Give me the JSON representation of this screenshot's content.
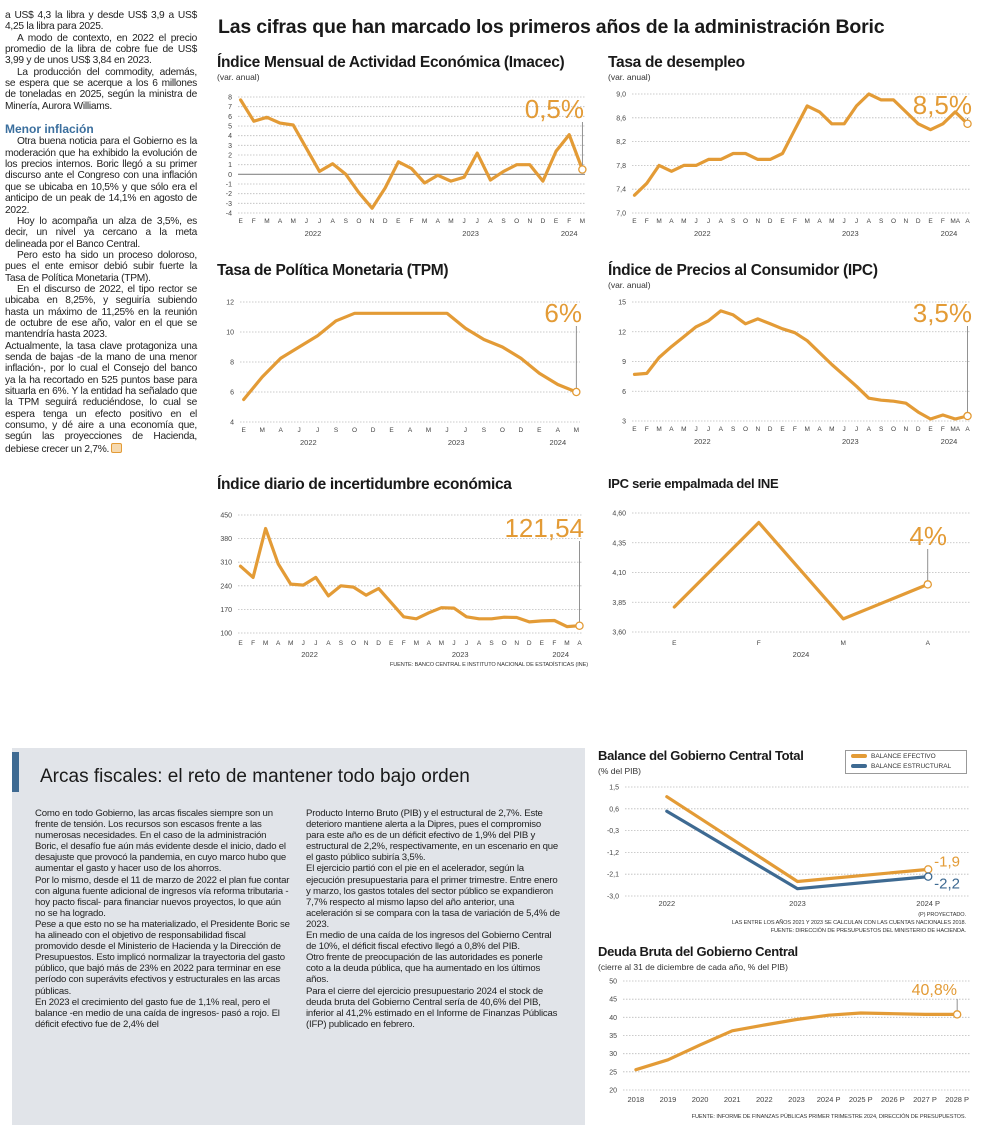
{
  "headline": "Las cifras que han marcado los primeros años de la administración Boric",
  "left_article": {
    "paragraphs_top": [
      "a US$ 4,3 la libra y desde US$ 3,9 a US$ 4,25 la libra para 2025.",
      "A modo de contexto, en 2022 el precio promedio de la libra de cobre fue de US$ 3,99 y de unos US$ 3,84 en 2023.",
      "La producción del commodity, además, se espera que se acerque a los 6 millones de toneladas en 2025, según la ministra de Minería, Aurora Williams."
    ],
    "subheading": "Menor inflación",
    "paragraphs": [
      "Otra buena noticia para el Gobierno es la moderación que ha exhibido la evolución de los precios internos. Boric llegó a su primer discurso ante el Congreso con una inflación que se ubicaba en 10,5% y que sólo era el anticipo de un peak de 14,1% en agosto de 2022.",
      "Hoy lo acompaña un alza de 3,5%, es decir, un nivel ya cercano a la meta delineada por el Banco Central.",
      "Pero esto ha sido un proceso doloroso, pues el ente emisor debió subir fuerte la Tasa de Política Monetaria (TPM).",
      "En el discurso de 2022, el tipo rector se ubicaba en 8,25%, y seguiría subiendo hasta un máximo de 11,25% en la reunión de octubre de ese año, valor en el que se mantendría hasta 2023.",
      "Actualmente, la tasa clave protagoniza una senda de bajas -de la mano de una menor inflación-, por lo cual el Consejo del banco ya la ha recortado en 525 puntos base para situarla en 6%. Y la entidad ha señalado que la TPM seguirá reduciéndose, lo cual se espera tenga un efecto positivo en el consumo, y dé aire a una economía que, según las proyecciones de Hacienda, debiese crecer un 2,7%."
    ]
  },
  "fiscal_box": {
    "title": "Arcas fiscales: el reto de mantener todo bajo orden",
    "accent_color": "#3e6a92",
    "col1": [
      "Como en todo Gobierno, las arcas fiscales siempre son un frente de tensión. Los recursos son escasos frente a las numerosas necesidades. En el caso de la administración Boric, el desafío fue aún más evidente desde el inicio, dado el desajuste que provocó la pandemia, en cuyo marco hubo que aumentar el gasto y hacer uso de los ahorros.",
      "Por lo mismo, desde el 11 de marzo de 2022 el plan fue contar con alguna fuente adicional de ingresos vía reforma tributaria -hoy pacto fiscal- para financiar nuevos proyectos, lo que aún no se ha logrado.",
      "Pese a que esto no se ha materializado, el Presidente Boric se ha alineado con el objetivo de responsabilidad fiscal promovido desde el Ministerio de Hacienda y la Dirección de Presupuestos. Esto implicó normalizar la trayectoria del gasto público, que bajó más de 23% en 2022 para terminar en ese período con superávits efectivos y estructurales en las arcas públicas.",
      "En 2023 el crecimiento del gasto fue de 1,1% real, pero el balance -en medio de una caída de ingresos- pasó a rojo. El déficit efectivo fue de 2,4% del"
    ],
    "col2": [
      "Producto Interno Bruto (PIB) y el estructural de 2,7%. Este deterioro mantiene alerta a la Dipres, pues el compromiso para este año es de un déficit efectivo de 1,9% del PIB y estructural de 2,2%, respectivamente, en un escenario en que el gasto público subiría 3,5%.",
      "El ejercicio partió con el pie en el acelerador, según la ejecución presupuestaria para el primer trimestre. Entre enero y marzo, los gastos totales del sector público se expandieron 7,7% respecto al mismo lapso del año anterior, una aceleración si se compara con la tasa de variación de 5,4% de 2023.",
      "En medio de una caída de los ingresos del Gobierno Central de 10%, el déficit fiscal efectivo llegó a 0,8% del PIB.",
      "Otro frente de preocupación de las autoridades es ponerle coto a la deuda pública, que ha aumentado en los últimos años.",
      "Para el cierre del ejercicio presupuestario 2024 el stock de deuda bruta del Gobierno Central sería de 40,6% del PIB, inferior al 41,2% estimado en el Informe de Finanzas Públicas (IFP) publicado en febrero."
    ]
  },
  "chart_data": [
    {
      "type": "line",
      "title": "Índice Mensual de Actividad Económica (Imacec)",
      "subtitle": "(var. anual)",
      "categories": [
        "E",
        "F",
        "M",
        "A",
        "M",
        "J",
        "J",
        "A",
        "S",
        "O",
        "N",
        "D",
        "E",
        "F",
        "M",
        "A",
        "M",
        "J",
        "J",
        "A",
        "S",
        "O",
        "N",
        "D",
        "E",
        "F",
        "M"
      ],
      "years": [
        {
          "label": "2022",
          "count": 12
        },
        {
          "label": "2023",
          "count": 12
        },
        {
          "label": "2024",
          "count": 3
        }
      ],
      "ytick_labels": [
        "8",
        "7",
        "6",
        "5",
        "4",
        "3",
        "2",
        "1",
        "0",
        "-1",
        "-2",
        "-3",
        "-4"
      ],
      "ylim": [
        -4,
        8
      ],
      "grid": true,
      "zero_line": true,
      "series": [
        {
          "values": [
            7.7,
            5.5,
            5.9,
            5.3,
            5.1,
            2.7,
            0.3,
            1.1,
            0.0,
            -1.9,
            -3.5,
            -1.4,
            1.3,
            0.6,
            -0.9,
            -0.1,
            -0.7,
            -0.3,
            2.2,
            -0.6,
            0.3,
            1.0,
            1.0,
            -0.7,
            2.4,
            4.1,
            0.5
          ],
          "color": "#e39b36"
        }
      ],
      "callout": "0,5%"
    },
    {
      "type": "line",
      "title": "Tasa de desempleo",
      "subtitle": "(var. anual)",
      "categories": [
        "E",
        "F",
        "M",
        "A",
        "M",
        "J",
        "J",
        "A",
        "S",
        "O",
        "N",
        "D",
        "E",
        "F",
        "M",
        "A",
        "M",
        "J",
        "J",
        "A",
        "S",
        "O",
        "N",
        "D",
        "E",
        "F",
        "MA",
        "A"
      ],
      "years": [
        {
          "label": "2022",
          "count": 12
        },
        {
          "label": "2023",
          "count": 12
        },
        {
          "label": "2024",
          "count": 4
        }
      ],
      "ytick_labels": [
        "9,0",
        "8,6",
        "8,2",
        "7,8",
        "7,4",
        "7,0"
      ],
      "ylim": [
        7.0,
        9.0
      ],
      "grid": true,
      "series": [
        {
          "values": [
            7.3,
            7.5,
            7.8,
            7.7,
            7.8,
            7.8,
            7.9,
            7.9,
            8.0,
            8.0,
            7.9,
            7.9,
            8.0,
            8.4,
            8.8,
            8.7,
            8.5,
            8.5,
            8.8,
            9.0,
            8.9,
            8.9,
            8.7,
            8.5,
            8.4,
            8.5,
            8.7,
            8.5
          ],
          "color": "#e39b36"
        }
      ],
      "callout": "8,5%"
    },
    {
      "type": "line",
      "title": "Tasa de Política Monetaria (TPM)",
      "subtitle": "",
      "categories": [
        "E",
        "M",
        "A",
        "J",
        "J",
        "S",
        "O",
        "D",
        "E",
        "A",
        "M",
        "J",
        "J",
        "S",
        "O",
        "D",
        "E",
        "A",
        "M"
      ],
      "years": [
        {
          "label": "2022",
          "count": 8
        },
        {
          "label": "2023",
          "count": 8
        },
        {
          "label": "2024",
          "count": 3
        }
      ],
      "ytick_labels": [
        "12",
        "10",
        "8",
        "6",
        "4"
      ],
      "ylim": [
        4,
        12
      ],
      "grid": true,
      "series": [
        {
          "values": [
            5.5,
            7.0,
            8.25,
            9.0,
            9.75,
            10.75,
            11.25,
            11.25,
            11.25,
            11.25,
            11.25,
            11.25,
            10.25,
            9.5,
            9.0,
            8.25,
            7.25,
            6.5,
            6.0
          ],
          "color": "#e39b36"
        }
      ],
      "callout": "6%"
    },
    {
      "type": "line",
      "title": "Índice de Precios al Consumidor (IPC)",
      "subtitle": "(var. anual)",
      "categories": [
        "E",
        "F",
        "M",
        "A",
        "M",
        "J",
        "J",
        "A",
        "S",
        "O",
        "N",
        "D",
        "E",
        "F",
        "M",
        "A",
        "M",
        "J",
        "J",
        "A",
        "S",
        "O",
        "N",
        "D",
        "E",
        "F",
        "MA",
        "A"
      ],
      "years": [
        {
          "label": "2022",
          "count": 12
        },
        {
          "label": "2023",
          "count": 12
        },
        {
          "label": "2024",
          "count": 4
        }
      ],
      "ytick_labels": [
        "15",
        "12",
        "9",
        "6",
        "3"
      ],
      "ylim": [
        3,
        15
      ],
      "grid": true,
      "series": [
        {
          "values": [
            7.7,
            7.8,
            9.4,
            10.5,
            11.5,
            12.5,
            13.1,
            14.1,
            13.7,
            12.8,
            13.3,
            12.8,
            12.3,
            11.9,
            11.1,
            9.9,
            8.7,
            7.6,
            6.5,
            5.3,
            5.1,
            5.0,
            4.8,
            3.9,
            3.2,
            3.6,
            3.2,
            3.5
          ],
          "color": "#e39b36"
        }
      ],
      "callout": "3,5%"
    },
    {
      "type": "line",
      "title": "Índice diario de incertidumbre económica",
      "subtitle": "",
      "categories": [
        "E",
        "F",
        "M",
        "A",
        "M",
        "J",
        "J",
        "A",
        "S",
        "O",
        "N",
        "D",
        "E",
        "F",
        "M",
        "A",
        "M",
        "J",
        "J",
        "A",
        "S",
        "O",
        "N",
        "D",
        "E",
        "F",
        "M",
        "A"
      ],
      "years": [
        {
          "label": "2022",
          "count": 12
        },
        {
          "label": "2023",
          "count": 12
        },
        {
          "label": "2024",
          "count": 4
        }
      ],
      "ytick_labels": [
        "450",
        "380",
        "310",
        "240",
        "170",
        "100"
      ],
      "ylim": [
        100,
        450
      ],
      "grid": true,
      "series": [
        {
          "values": [
            298,
            265,
            410,
            305,
            245,
            242,
            265,
            210,
            240,
            236,
            212,
            232,
            190,
            148,
            142,
            160,
            175,
            174,
            148,
            142,
            142,
            147,
            146,
            133,
            136,
            137,
            119,
            121.54
          ],
          "color": "#e39b36"
        }
      ],
      "callout": "121,54",
      "source": "FUENTE: BANCO CENTRAL E INSTITUTO NACIONAL DE ESTADÍSTICAS (INE)"
    },
    {
      "type": "line",
      "title": "IPC serie empalmada del INE",
      "subtitle": "",
      "categories": [
        "E",
        "F",
        "M",
        "A"
      ],
      "years": [
        {
          "label": "2024",
          "count": 4
        }
      ],
      "ytick_labels": [
        "4,60",
        "4,35",
        "4,10",
        "3,85",
        "3,60"
      ],
      "ylim": [
        3.6,
        4.6
      ],
      "grid": true,
      "series": [
        {
          "values": [
            3.81,
            4.52,
            3.71,
            4.0
          ],
          "color": "#e39b36"
        }
      ],
      "callout": "4%"
    },
    {
      "type": "line",
      "title": "Balance del Gobierno Central Total",
      "subtitle": "(% del PIB)",
      "categories": [
        "2022",
        "2023",
        "2024 P"
      ],
      "ytick_labels": [
        "1,5",
        "0,6",
        "-0,3",
        "-1,2",
        "-2,1",
        "-3,0"
      ],
      "ylim": [
        -3.0,
        1.5
      ],
      "grid": true,
      "legend": "top-right",
      "series": [
        {
          "name": "BALANCE EFECTIVO",
          "values": [
            1.1,
            -2.4,
            -1.9
          ],
          "color": "#e39b36",
          "end_label": "-1,9"
        },
        {
          "name": "BALANCE ESTRUCTURAL",
          "values": [
            0.5,
            -2.7,
            -2.2
          ],
          "color": "#3e6a92",
          "end_label": "-2,2"
        }
      ],
      "notes": [
        "(P) PROYECTADO.",
        "LAS ENTRE LOS AÑOS 2021 Y 2023 SE CALCULAN  CON LAS CUENTAS NACIONALES 2018.",
        "FUENTE: DIRECCIÓN DE PRESUPUESTOS DEL MINISTERIO DE HACIENDA."
      ]
    },
    {
      "type": "line",
      "title": "Deuda Bruta del Gobierno Central",
      "subtitle": "(cierre al 31 de diciembre de cada año, % del PIB)",
      "categories": [
        "2018",
        "2019",
        "2020",
        "2021",
        "2022",
        "2023",
        "2024 P",
        "2025 P",
        "2026 P",
        "2027 P",
        "2028 P"
      ],
      "ytick_labels": [
        "50",
        "45",
        "40",
        "35",
        "30",
        "25",
        "20"
      ],
      "ylim": [
        20,
        50
      ],
      "grid": true,
      "series": [
        {
          "values": [
            25.6,
            28.3,
            32.4,
            36.3,
            37.9,
            39.4,
            40.6,
            41.2,
            41.0,
            40.8,
            40.8
          ],
          "color": "#e39b36"
        }
      ],
      "callout": "40,8%",
      "source": "FUENTE: INFORME DE FINANZAS PÚBLICAS PRIMER TRIMESTRE 2024, DIRECCIÓN DE PRESUPUESTOS."
    }
  ]
}
